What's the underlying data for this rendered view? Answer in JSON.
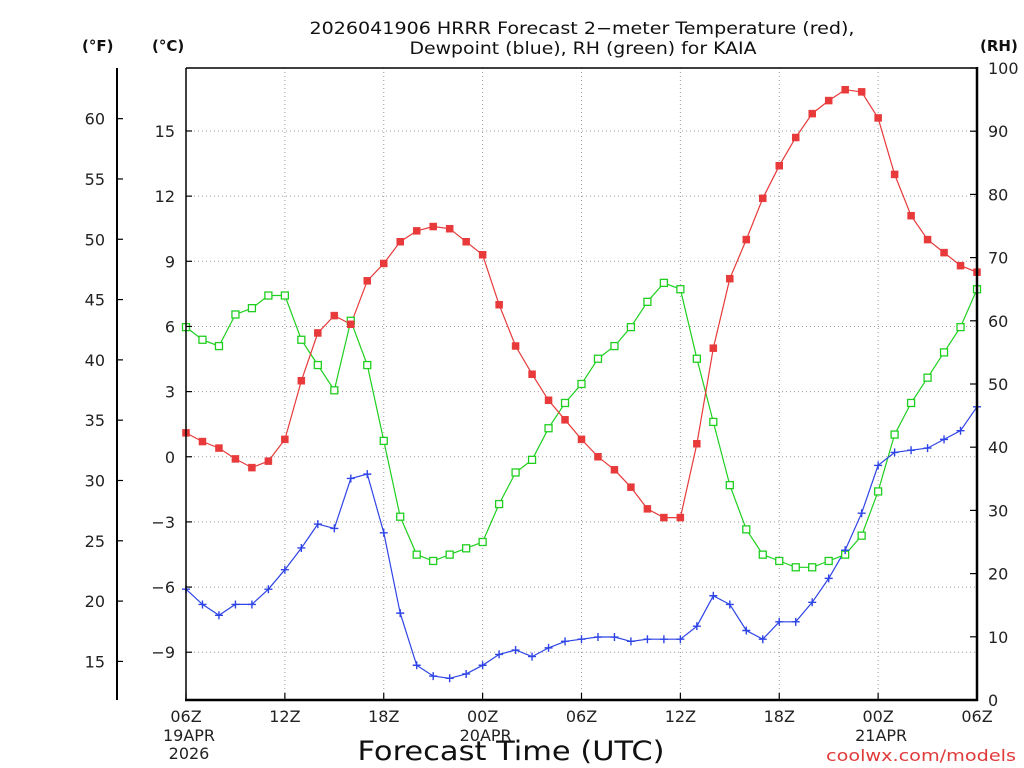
{
  "chart_data": {
    "type": "line",
    "title": [
      "2026041906 HRRR Forecast 2−meter Temperature (red),",
      "Dewpoint (blue), RH (green) for KAIA"
    ],
    "xlabel": "Forecast Time (UTC)",
    "x": [
      "2026-04-19 06Z",
      "2026-04-19 07Z",
      "2026-04-19 08Z",
      "2026-04-19 09Z",
      "2026-04-19 10Z",
      "2026-04-19 11Z",
      "2026-04-19 12Z",
      "2026-04-19 13Z",
      "2026-04-19 14Z",
      "2026-04-19 15Z",
      "2026-04-19 16Z",
      "2026-04-19 17Z",
      "2026-04-19 18Z",
      "2026-04-19 19Z",
      "2026-04-19 20Z",
      "2026-04-19 21Z",
      "2026-04-19 22Z",
      "2026-04-19 23Z",
      "2026-04-20 00Z",
      "2026-04-20 01Z",
      "2026-04-20 02Z",
      "2026-04-20 03Z",
      "2026-04-20 04Z",
      "2026-04-20 05Z",
      "2026-04-20 06Z",
      "2026-04-20 07Z",
      "2026-04-20 08Z",
      "2026-04-20 09Z",
      "2026-04-20 10Z",
      "2026-04-20 11Z",
      "2026-04-20 12Z",
      "2026-04-20 13Z",
      "2026-04-20 14Z",
      "2026-04-20 15Z",
      "2026-04-20 16Z",
      "2026-04-20 17Z",
      "2026-04-20 18Z",
      "2026-04-20 19Z",
      "2026-04-20 20Z",
      "2026-04-20 21Z",
      "2026-04-20 22Z",
      "2026-04-20 23Z",
      "2026-04-21 00Z",
      "2026-04-21 01Z",
      "2026-04-21 02Z",
      "2026-04-21 03Z",
      "2026-04-21 04Z",
      "2026-04-21 05Z",
      "2026-04-21 06Z"
    ],
    "x_ticks": [
      {
        "label": "06Z",
        "date": [
          "19APR",
          "2026"
        ]
      },
      {
        "label": "12Z"
      },
      {
        "label": "18Z"
      },
      {
        "label": "00Z",
        "date": [
          "20APR"
        ]
      },
      {
        "label": "06Z"
      },
      {
        "label": "12Z"
      },
      {
        "label": "18Z"
      },
      {
        "label": "00Z",
        "date": [
          "21APR"
        ]
      },
      {
        "label": "06Z"
      }
    ],
    "y_fahrenheit": {
      "label": "(°F)",
      "ylim": [
        11.8,
        64.2
      ],
      "ticks": [
        60,
        55,
        50,
        45,
        40,
        35,
        30,
        25,
        20,
        15
      ],
      "tick_labels": [
        "60",
        "55",
        "50",
        "45",
        "40",
        "35",
        "30",
        "25",
        "20",
        "15"
      ]
    },
    "y_celsius": {
      "label": "(°C)",
      "ylim": [
        -11.2,
        17.9
      ],
      "ticks": [
        15,
        12,
        9,
        6,
        3,
        0,
        -3,
        -6,
        -9
      ],
      "tick_labels": [
        "15",
        "12",
        "9",
        "6",
        "3",
        "0",
        "−3",
        "−6",
        "−9"
      ]
    },
    "y_rh": {
      "label": "(RH)",
      "ylim": [
        0,
        100
      ],
      "ticks": [
        100,
        90,
        80,
        70,
        60,
        50,
        40,
        30,
        20,
        10,
        0
      ],
      "tick_labels": [
        "100",
        "90",
        "80",
        "70",
        "60",
        "50",
        "40",
        "30",
        "20",
        "10",
        "0"
      ]
    },
    "grid": true,
    "series": {
      "temperature": {
        "color": "#e83a3a",
        "values": [
          1.1,
          0.7,
          0.4,
          -0.1,
          -0.5,
          -0.2,
          0.8,
          3.5,
          5.7,
          6.5,
          6.1,
          8.1,
          8.9,
          9.9,
          10.4,
          10.6,
          10.5,
          9.9,
          9.3,
          7.0,
          5.1,
          3.8,
          2.6,
          1.7,
          0.8,
          0.0,
          -0.6,
          -1.4,
          -2.4,
          -2.8,
          -2.8,
          0.6,
          5.0,
          8.2,
          10.0,
          11.9,
          13.4,
          14.7,
          15.8,
          16.4,
          16.9,
          16.8,
          15.6,
          13.0,
          11.1,
          10.0,
          9.4,
          8.8,
          8.5
        ]
      },
      "dewpoint": {
        "color": "#2e44e6",
        "values": [
          -6.1,
          -6.8,
          -7.3,
          -6.8,
          -6.8,
          -6.1,
          -5.2,
          -4.2,
          -3.1,
          -3.3,
          -1.0,
          -0.8,
          -3.5,
          -7.2,
          -9.6,
          -10.1,
          -10.2,
          -10.0,
          -9.6,
          -9.1,
          -8.9,
          -9.2,
          -8.8,
          -8.5,
          -8.4,
          -8.3,
          -8.3,
          -8.5,
          -8.4,
          -8.4,
          -8.4,
          -7.8,
          -6.4,
          -6.8,
          -8.0,
          -8.4,
          -7.6,
          -7.6,
          -6.7,
          -5.6,
          -4.3,
          -2.6,
          -0.4,
          0.2,
          0.3,
          0.4,
          0.8,
          1.2,
          2.3
        ]
      },
      "rh": {
        "color": "#1fcf1f",
        "values": [
          59,
          57,
          56,
          61,
          62,
          64,
          64,
          57,
          53,
          49,
          60,
          53,
          41,
          29,
          23,
          22,
          23,
          24,
          25,
          31,
          36,
          38,
          43,
          47,
          50,
          54,
          56,
          59,
          63,
          66,
          65,
          54,
          44,
          34,
          27,
          23,
          22,
          21,
          21,
          22,
          23,
          26,
          33,
          42,
          47,
          51,
          55,
          59,
          65
        ]
      }
    }
  },
  "credit": "coolwx.com/models"
}
